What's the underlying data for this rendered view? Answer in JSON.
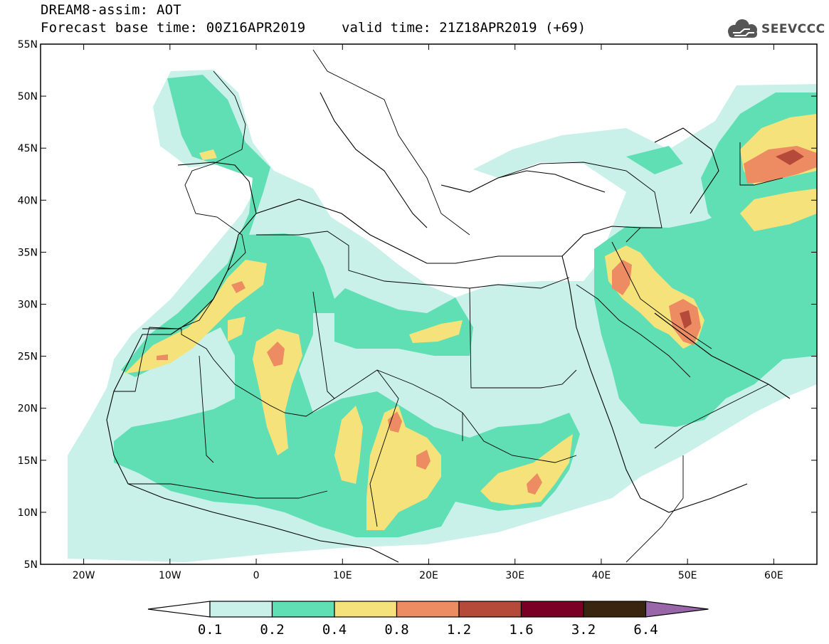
{
  "header": {
    "model_line": "DREAM8-assim: AOT",
    "base_time_line": "Forecast base time: 00Z16APR2019",
    "valid_time_line": "valid time: 21Z18APR2019 (+69)",
    "logo_text": "SEEVCCC"
  },
  "map": {
    "lat_labels": [
      "55N",
      "50N",
      "45N",
      "40N",
      "35N",
      "30N",
      "25N",
      "20N",
      "15N",
      "10N",
      "5N"
    ],
    "lat_values": [
      55,
      50,
      45,
      40,
      35,
      30,
      25,
      20,
      15,
      10,
      5
    ],
    "lon_labels": [
      "20W",
      "10W",
      "0",
      "10E",
      "20E",
      "30E",
      "40E",
      "50E",
      "60E"
    ],
    "lon_values": [
      -20,
      -10,
      0,
      10,
      20,
      30,
      40,
      50,
      60
    ],
    "lon_range": [
      -25,
      65
    ],
    "lat_range": [
      5,
      55
    ]
  },
  "legend": {
    "thresholds": [
      "0.1",
      "0.2",
      "0.4",
      "0.8",
      "1.2",
      "1.6",
      "3.2",
      "6.4"
    ],
    "colors": [
      "#c9f1ea",
      "#5fdfb3",
      "#f6e27a",
      "#ed8c62",
      "#b5493a",
      "#7a0025",
      "#3a2510",
      "#9966aa"
    ]
  }
}
